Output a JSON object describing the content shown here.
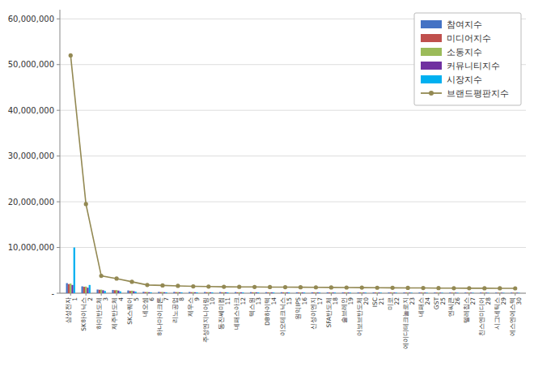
{
  "chart_data": {
    "type": "bar",
    "categories": [
      "삼성전자",
      "SK하이닉스",
      "하미반도체",
      "제주반도체",
      "SK스퀘어",
      "네오셈",
      "하나마이크론",
      "리노공업",
      "제우스",
      "주성엔지니어링",
      "동진쎄미켐",
      "네패스아크",
      "텍스원",
      "DB하이텍",
      "이오테크닉스",
      "원익IPS",
      "신성이엔지",
      "SFA반도체",
      "솔브레인",
      "어보브반도체",
      "ISC",
      "미코",
      "에이디테크놀로지",
      "네패스",
      "GST",
      "엔씨큰",
      "텔레칩스",
      "친스엔미디어",
      "시그네틱스",
      "에스엔에스텍"
    ],
    "x": [
      1,
      2,
      3,
      4,
      5,
      6,
      7,
      8,
      9,
      10,
      11,
      12,
      13,
      14,
      15,
      16,
      17,
      18,
      19,
      20,
      21,
      22,
      23,
      24,
      25,
      26,
      27,
      28,
      29,
      30
    ],
    "xlim": [
      0.3,
      30.7
    ],
    "xticks": [
      1,
      2,
      3,
      4,
      5,
      6,
      7,
      8,
      9,
      10,
      11,
      12,
      13,
      14,
      15,
      16,
      17,
      18,
      19,
      20,
      21,
      22,
      23,
      24,
      25,
      26,
      27,
      28,
      29,
      30
    ],
    "series": [
      {
        "name": "참여지수",
        "type": "bar",
        "color": "#4472C4",
        "values": [
          2200000,
          1500000,
          800000,
          700000,
          600000,
          300000,
          290000,
          280000,
          270000,
          260000,
          250000,
          240000,
          230000,
          220000,
          210000,
          200000,
          195000,
          190000,
          185000,
          180000,
          175000,
          170000,
          165000,
          160000,
          155000,
          150000,
          145000,
          140000,
          135000,
          130000
        ]
      },
      {
        "name": "미디어지수",
        "type": "bar",
        "color": "#C0504D",
        "values": [
          2000000,
          1400000,
          750000,
          650000,
          500000,
          250000,
          240000,
          230000,
          220000,
          210000,
          200000,
          195000,
          190000,
          185000,
          180000,
          175000,
          170000,
          165000,
          160000,
          155000,
          150000,
          145000,
          140000,
          135000,
          130000,
          125000,
          120000,
          115000,
          110000,
          105000
        ]
      },
      {
        "name": "소동지수",
        "type": "bar",
        "color": "#9BBB59",
        "values": [
          2100000,
          1450000,
          780000,
          680000,
          550000,
          270000,
          260000,
          250000,
          240000,
          230000,
          220000,
          215000,
          210000,
          205000,
          200000,
          195000,
          190000,
          185000,
          180000,
          175000,
          170000,
          165000,
          160000,
          155000,
          150000,
          145000,
          140000,
          135000,
          130000,
          125000
        ]
      },
      {
        "name": "커뮤니티지수",
        "type": "bar",
        "color": "#7030A0",
        "values": [
          1800000,
          1200000,
          650000,
          570000,
          450000,
          220000,
          215000,
          210000,
          205000,
          200000,
          195000,
          190000,
          185000,
          180000,
          175000,
          170000,
          165000,
          160000,
          155000,
          150000,
          145000,
          140000,
          135000,
          130000,
          125000,
          120000,
          115000,
          110000,
          105000,
          100000
        ]
      },
      {
        "name": "시장지수",
        "type": "bar",
        "color": "#00B0F0",
        "values": [
          10000000,
          1800000,
          500000,
          400000,
          350000,
          200000,
          195000,
          190000,
          185000,
          180000,
          175000,
          170000,
          165000,
          160000,
          155000,
          150000,
          145000,
          140000,
          135000,
          130000,
          125000,
          120000,
          115000,
          110000,
          105000,
          100000,
          95000,
          90000,
          85000,
          80000
        ]
      },
      {
        "name": "브랜드평판지수",
        "type": "line",
        "color": "#938953",
        "marker": "circle",
        "values": [
          52000000,
          19500000,
          3800000,
          3200000,
          2500000,
          1800000,
          1700000,
          1600000,
          1500000,
          1450000,
          1400000,
          1380000,
          1360000,
          1340000,
          1320000,
          1300000,
          1280000,
          1260000,
          1240000,
          1220000,
          1200000,
          1180000,
          1160000,
          1140000,
          1120000,
          1100000,
          1090000,
          1080000,
          1070000,
          1060000
        ]
      }
    ],
    "ylim": [
      0,
      62000000
    ],
    "yticks": [
      {
        "value": 0,
        "label": " -"
      },
      {
        "value": 10000000,
        "label": "10,000,000"
      },
      {
        "value": 20000000,
        "label": "20,000,000"
      },
      {
        "value": 30000000,
        "label": "30,000,000"
      },
      {
        "value": 40000000,
        "label": "40,000,000"
      },
      {
        "value": 50000000,
        "label": "50,000,000"
      },
      {
        "value": 60000000,
        "label": "60,000,000"
      }
    ],
    "grid": true,
    "legend": "upper right"
  }
}
